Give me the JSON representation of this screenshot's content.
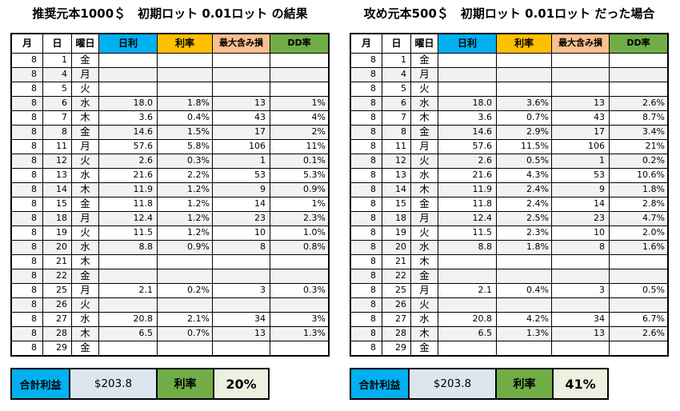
{
  "colors": {
    "header_daily_profit": "#00B0F0",
    "header_profit_rate": "#FFC000",
    "header_max_float_loss": "#FABF8F",
    "header_dd_rate": "#70AD47",
    "summary_total_fill": "#DCE6F1",
    "summary_rate_fill": "#EBF1DE",
    "row_stripe": "#F2F2F2",
    "grid_border": "#000000"
  },
  "tables": [
    {
      "title": "推奨元本1000＄　初期ロット 0.01ロット の結果",
      "headers": [
        "月",
        "日",
        "曜日",
        "日利",
        "利率",
        "最大含み損",
        "DD率"
      ],
      "rows": [
        [
          "8",
          "1",
          "金",
          "",
          "",
          "",
          ""
        ],
        [
          "8",
          "4",
          "月",
          "",
          "",
          "",
          ""
        ],
        [
          "8",
          "5",
          "火",
          "",
          "",
          "",
          ""
        ],
        [
          "8",
          "6",
          "水",
          "18.0",
          "1.8%",
          "13",
          "1%"
        ],
        [
          "8",
          "7",
          "木",
          "3.6",
          "0.4%",
          "43",
          "4%"
        ],
        [
          "8",
          "8",
          "金",
          "14.6",
          "1.5%",
          "17",
          "2%"
        ],
        [
          "8",
          "11",
          "月",
          "57.6",
          "5.8%",
          "106",
          "11%"
        ],
        [
          "8",
          "12",
          "火",
          "2.6",
          "0.3%",
          "1",
          "0.1%"
        ],
        [
          "8",
          "13",
          "水",
          "21.6",
          "2.2%",
          "53",
          "5.3%"
        ],
        [
          "8",
          "14",
          "木",
          "11.9",
          "1.2%",
          "9",
          "0.9%"
        ],
        [
          "8",
          "15",
          "金",
          "11.8",
          "1.2%",
          "14",
          "1%"
        ],
        [
          "8",
          "18",
          "月",
          "12.4",
          "1.2%",
          "23",
          "2.3%"
        ],
        [
          "8",
          "19",
          "火",
          "11.5",
          "1.2%",
          "10",
          "1.0%"
        ],
        [
          "8",
          "20",
          "水",
          "8.8",
          "0.9%",
          "8",
          "0.8%"
        ],
        [
          "8",
          "21",
          "木",
          "",
          "",
          "",
          ""
        ],
        [
          "8",
          "22",
          "金",
          "",
          "",
          "",
          ""
        ],
        [
          "8",
          "25",
          "月",
          "2.1",
          "0.2%",
          "3",
          "0.3%"
        ],
        [
          "8",
          "26",
          "火",
          "",
          "",
          "",
          ""
        ],
        [
          "8",
          "27",
          "水",
          "20.8",
          "2.1%",
          "34",
          "3%"
        ],
        [
          "8",
          "28",
          "木",
          "6.5",
          "0.7%",
          "13",
          "1.3%"
        ],
        [
          "8",
          "29",
          "金",
          "",
          "",
          "",
          ""
        ]
      ],
      "summary": {
        "profit_label": "合計利益",
        "profit_value": "$203.8",
        "rate_label": "利率",
        "rate_value": "20%"
      }
    },
    {
      "title": "攻め元本500＄　初期ロット 0.01ロット だった場合",
      "headers": [
        "月",
        "日",
        "曜日",
        "日利",
        "利率",
        "最大含み損",
        "DD率"
      ],
      "rows": [
        [
          "8",
          "1",
          "金",
          "",
          "",
          "",
          ""
        ],
        [
          "8",
          "4",
          "月",
          "",
          "",
          "",
          ""
        ],
        [
          "8",
          "5",
          "火",
          "",
          "",
          "",
          ""
        ],
        [
          "8",
          "6",
          "水",
          "18.0",
          "3.6%",
          "13",
          "2.6%"
        ],
        [
          "8",
          "7",
          "木",
          "3.6",
          "0.7%",
          "43",
          "8.7%"
        ],
        [
          "8",
          "8",
          "金",
          "14.6",
          "2.9%",
          "17",
          "3.4%"
        ],
        [
          "8",
          "11",
          "月",
          "57.6",
          "11.5%",
          "106",
          "21%"
        ],
        [
          "8",
          "12",
          "火",
          "2.6",
          "0.5%",
          "1",
          "0.2%"
        ],
        [
          "8",
          "13",
          "水",
          "21.6",
          "4.3%",
          "53",
          "10.6%"
        ],
        [
          "8",
          "14",
          "木",
          "11.9",
          "2.4%",
          "9",
          "1.8%"
        ],
        [
          "8",
          "15",
          "金",
          "11.8",
          "2.4%",
          "14",
          "2.8%"
        ],
        [
          "8",
          "18",
          "月",
          "12.4",
          "2.5%",
          "23",
          "4.7%"
        ],
        [
          "8",
          "19",
          "火",
          "11.5",
          "2.3%",
          "10",
          "2.0%"
        ],
        [
          "8",
          "20",
          "水",
          "8.8",
          "1.8%",
          "8",
          "1.6%"
        ],
        [
          "8",
          "21",
          "木",
          "",
          "",
          "",
          ""
        ],
        [
          "8",
          "22",
          "金",
          "",
          "",
          "",
          ""
        ],
        [
          "8",
          "25",
          "月",
          "2.1",
          "0.4%",
          "3",
          "0.5%"
        ],
        [
          "8",
          "26",
          "火",
          "",
          "",
          "",
          ""
        ],
        [
          "8",
          "27",
          "水",
          "20.8",
          "4.2%",
          "34",
          "6.7%"
        ],
        [
          "8",
          "28",
          "木",
          "6.5",
          "1.3%",
          "13",
          "2.6%"
        ],
        [
          "8",
          "29",
          "金",
          "",
          "",
          "",
          ""
        ]
      ],
      "summary": {
        "profit_label": "合計利益",
        "profit_value": "$203.8",
        "rate_label": "利率",
        "rate_value": "41%"
      }
    }
  ]
}
